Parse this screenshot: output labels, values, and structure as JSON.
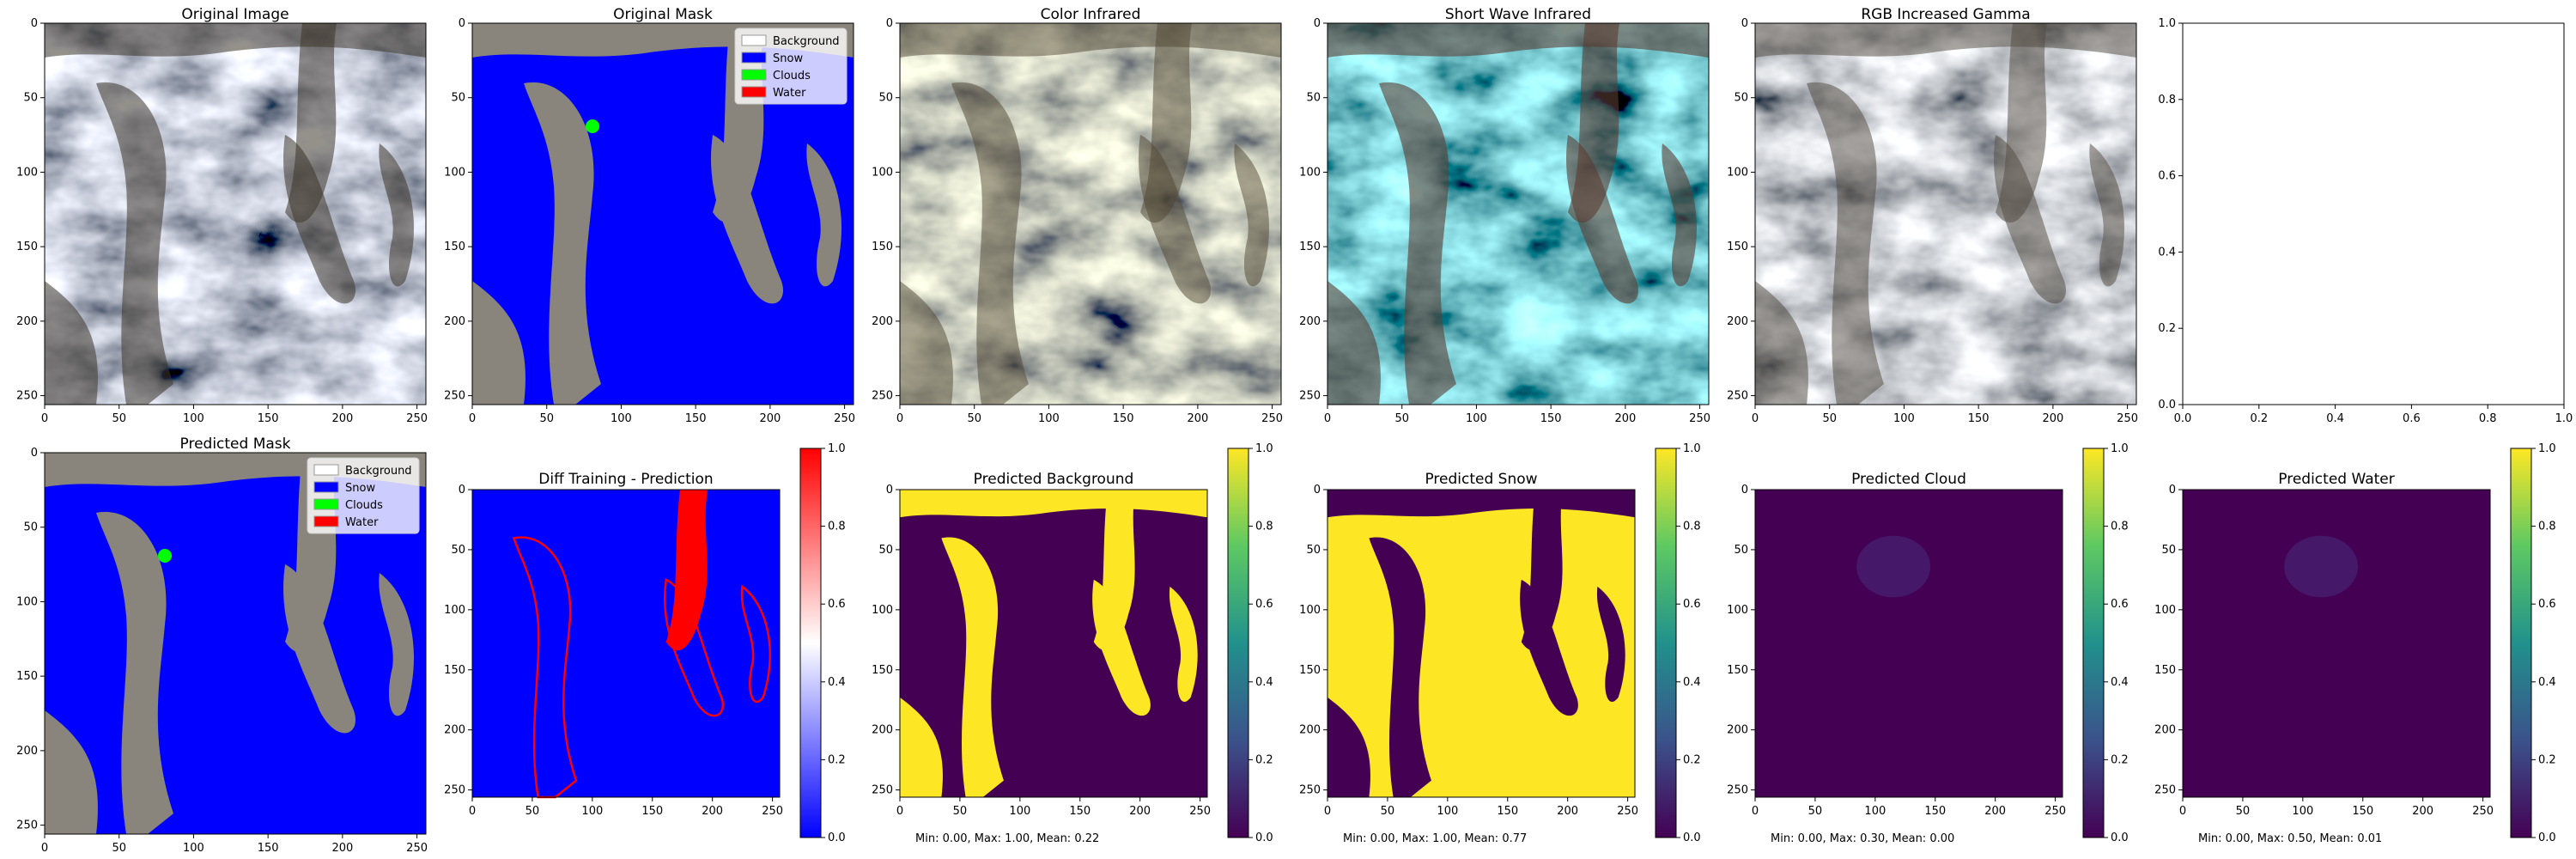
{
  "figure": {
    "panels": [
      {
        "id": "original-image",
        "title": "Original Image",
        "kind": "satellite",
        "palette": "natural"
      },
      {
        "id": "original-mask",
        "title": "Original Mask",
        "kind": "mask",
        "legend": true
      },
      {
        "id": "color-infrared",
        "title": "Color Infrared",
        "kind": "satellite",
        "palette": "cir"
      },
      {
        "id": "short-wave-infrared",
        "title": "Short Wave Infrared",
        "kind": "satellite",
        "palette": "swir"
      },
      {
        "id": "rgb-increased-gamma",
        "title": "RGB Increased Gamma",
        "kind": "satellite",
        "palette": "gamma"
      },
      {
        "id": "empty-axes",
        "title": "",
        "kind": "empty"
      },
      {
        "id": "predicted-mask",
        "title": "Predicted Mask",
        "kind": "mask",
        "legend": true
      },
      {
        "id": "diff-training-prediction",
        "title": "Diff Training - Prediction",
        "kind": "diff",
        "colorbar": "bwr"
      },
      {
        "id": "predicted-background",
        "title": "Predicted Background",
        "kind": "prob",
        "colorbar": "viridis",
        "stat": "Min: 0.00, Max: 1.00, Mean: 0.22"
      },
      {
        "id": "predicted-snow",
        "title": "Predicted Snow",
        "kind": "prob",
        "colorbar": "viridis",
        "stat": "Min: 0.00, Max: 1.00, Mean: 0.77"
      },
      {
        "id": "predicted-cloud",
        "title": "Predicted Cloud",
        "kind": "prob",
        "colorbar": "viridis",
        "stat": "Min: 0.00, Max: 0.30, Mean: 0.00"
      },
      {
        "id": "predicted-water",
        "title": "Predicted Water",
        "kind": "prob",
        "colorbar": "viridis",
        "stat": "Min: 0.00, Max: 0.50, Mean: 0.01"
      }
    ],
    "image_ticks": [
      "0",
      "50",
      "100",
      "150",
      "200",
      "250"
    ],
    "empty_ticks": [
      "0.0",
      "0.2",
      "0.4",
      "0.6",
      "0.8",
      "1.0"
    ],
    "colorbar_ticks": [
      "0.0",
      "0.2",
      "0.4",
      "0.6",
      "0.8",
      "1.0"
    ],
    "legend": [
      {
        "label": "Background",
        "color": "#ffffff"
      },
      {
        "label": "Snow",
        "color": "#0000ff"
      },
      {
        "label": "Clouds",
        "color": "#00ff00"
      },
      {
        "label": "Water",
        "color": "#ff0000"
      }
    ]
  },
  "chart_data": [
    {
      "type": "heatmap",
      "title": "Original Image",
      "x_ticks": [
        0,
        50,
        100,
        150,
        200,
        250
      ],
      "y_ticks": [
        0,
        50,
        100,
        150,
        200,
        250
      ],
      "xlim": [
        0,
        256
      ],
      "ylim": [
        256,
        0
      ]
    },
    {
      "type": "heatmap",
      "title": "Original Mask",
      "classes": [
        "Background",
        "Snow",
        "Clouds",
        "Water"
      ],
      "xlim": [
        0,
        256
      ],
      "ylim": [
        256,
        0
      ]
    },
    {
      "type": "heatmap",
      "title": "Color Infrared",
      "xlim": [
        0,
        256
      ],
      "ylim": [
        256,
        0
      ]
    },
    {
      "type": "heatmap",
      "title": "Short Wave Infrared",
      "xlim": [
        0,
        256
      ],
      "ylim": [
        256,
        0
      ]
    },
    {
      "type": "heatmap",
      "title": "RGB Increased Gamma",
      "xlim": [
        0,
        256
      ],
      "ylim": [
        256,
        0
      ]
    },
    {
      "type": "scatter",
      "title": "",
      "x": [],
      "y": [],
      "xlim": [
        0,
        1
      ],
      "ylim": [
        0,
        1
      ]
    },
    {
      "type": "heatmap",
      "title": "Predicted Mask",
      "classes": [
        "Background",
        "Snow",
        "Clouds",
        "Water"
      ],
      "xlim": [
        0,
        256
      ],
      "ylim": [
        256,
        0
      ]
    },
    {
      "type": "heatmap",
      "title": "Diff Training - Prediction",
      "colorbar_range": [
        0,
        1
      ]
    },
    {
      "type": "heatmap",
      "title": "Predicted Background",
      "colorbar_range": [
        0,
        1
      ],
      "min": 0.0,
      "max": 1.0,
      "mean": 0.22
    },
    {
      "type": "heatmap",
      "title": "Predicted Snow",
      "colorbar_range": [
        0,
        1
      ],
      "min": 0.0,
      "max": 1.0,
      "mean": 0.77
    },
    {
      "type": "heatmap",
      "title": "Predicted Cloud",
      "colorbar_range": [
        0,
        1
      ],
      "min": 0.0,
      "max": 0.3,
      "mean": 0.0
    },
    {
      "type": "heatmap",
      "title": "Predicted Water",
      "colorbar_range": [
        0,
        1
      ],
      "min": 0.0,
      "max": 0.5,
      "mean": 0.01
    }
  ]
}
